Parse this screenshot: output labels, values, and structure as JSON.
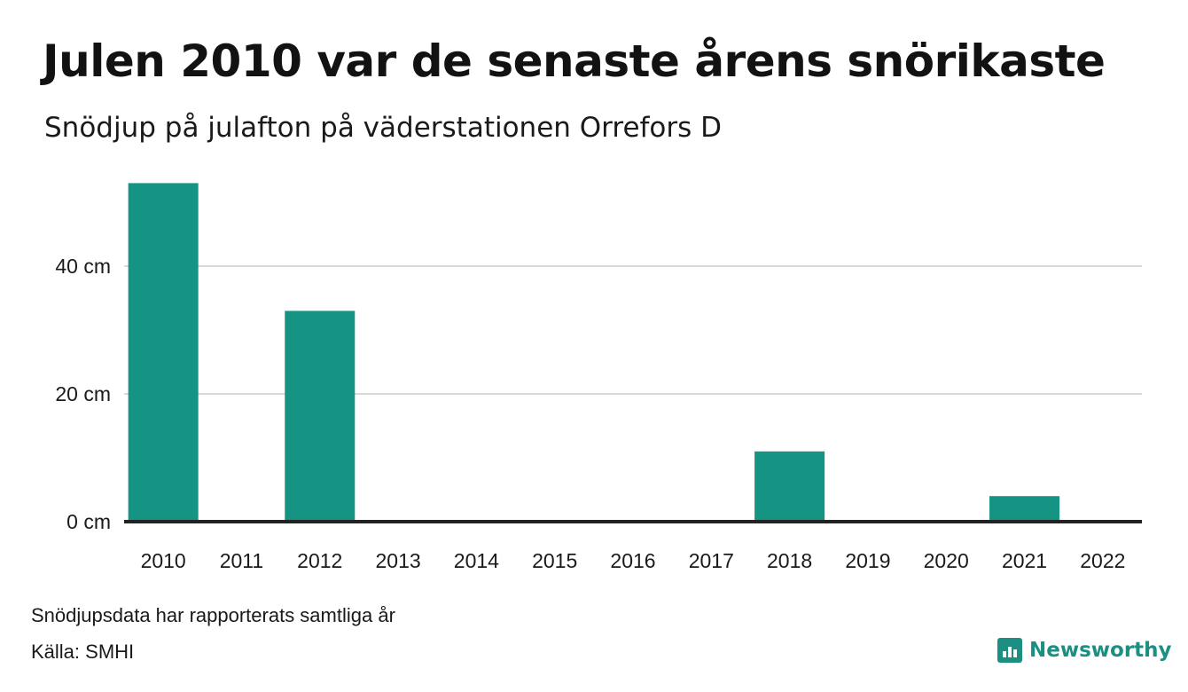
{
  "header": {
    "title": "Julen 2010 var de senaste årens snörikaste",
    "subtitle": "Snödjup på julafton på väderstationen Orrefors D"
  },
  "footer": {
    "note": "Snödjupsdata har rapporterats samtliga år",
    "source": "Källa: SMHI",
    "brand": "Newsworthy"
  },
  "colors": {
    "bar": "#159484",
    "grid": "#d9d9d9",
    "axis": "#222222",
    "brand": "#1b9082"
  },
  "chart_data": {
    "type": "bar",
    "title": "Julen 2010 var de senaste årens snörikaste",
    "subtitle": "Snödjup på julafton på väderstationen Orrefors D",
    "categories": [
      "2010",
      "2011",
      "2012",
      "2013",
      "2014",
      "2015",
      "2016",
      "2017",
      "2018",
      "2019",
      "2020",
      "2021",
      "2022"
    ],
    "values": [
      53,
      0,
      33,
      0,
      0,
      0,
      0,
      0,
      11,
      0,
      0,
      4,
      0
    ],
    "ylim": [
      0,
      55
    ],
    "yticks": [
      0,
      20,
      40
    ],
    "ytick_labels": [
      "0 cm",
      "20 cm",
      "40 cm"
    ],
    "grid": true,
    "legend": "none"
  }
}
